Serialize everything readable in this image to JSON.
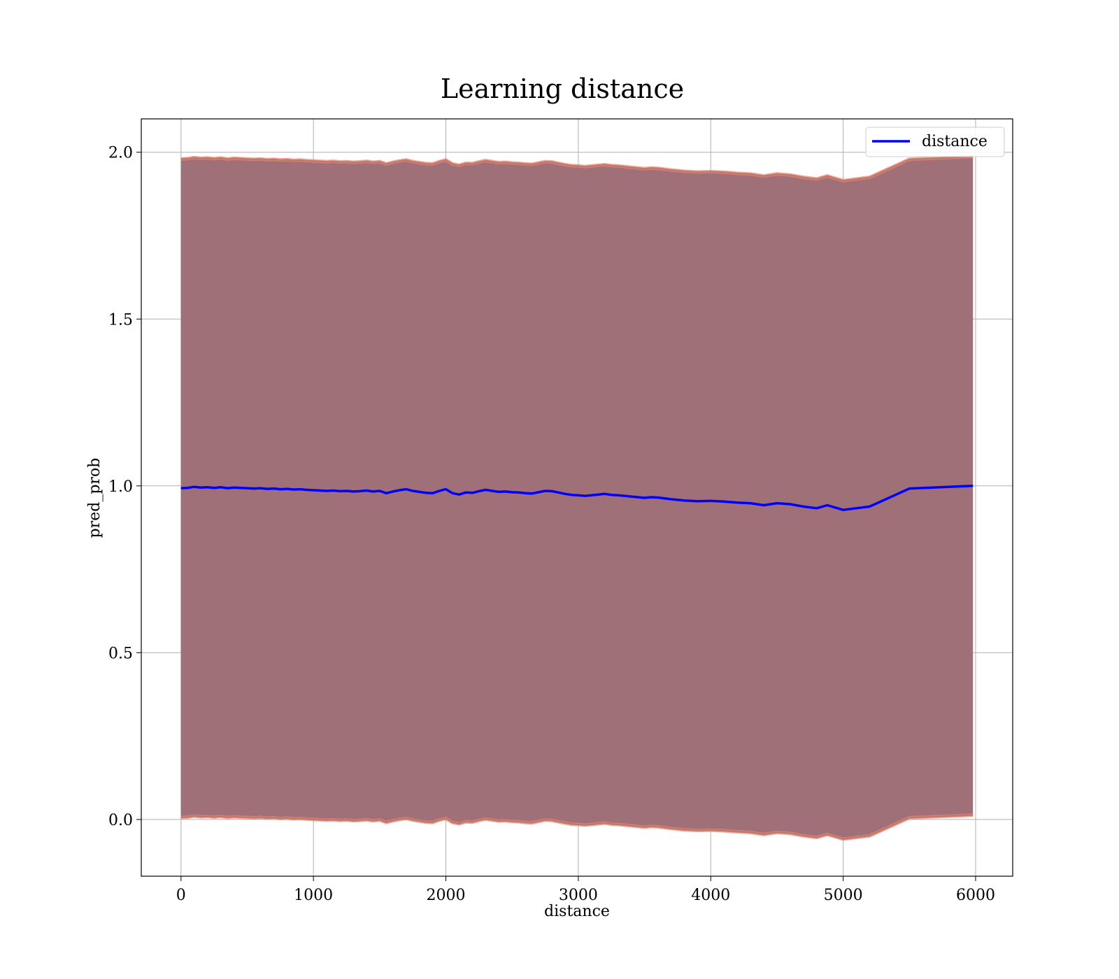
{
  "chart_data": {
    "type": "line",
    "title": "Learning distance",
    "xlabel": "distance",
    "ylabel": "pred_prob",
    "xlim": [
      -300,
      6280
    ],
    "ylim": [
      -0.17,
      2.1
    ],
    "xticks": [
      0,
      1000,
      2000,
      3000,
      4000,
      5000,
      6000
    ],
    "yticks": [
      0.0,
      0.5,
      1.0,
      1.5,
      2.0
    ],
    "xtick_labels": [
      "0",
      "1000",
      "2000",
      "3000",
      "4000",
      "5000",
      "6000"
    ],
    "ytick_labels": [
      "0.0",
      "0.5",
      "1.0",
      "1.5",
      "2.0"
    ],
    "grid": true,
    "legend": {
      "placement": "top-right",
      "entries": [
        "distance"
      ]
    },
    "colors": {
      "line": "#0000ff",
      "band_fill": "#a07078",
      "band_edge": "#f08080",
      "band_edge_inner": "#b07850"
    },
    "series": [
      {
        "name": "distance",
        "x": [
          0,
          50,
          100,
          150,
          200,
          250,
          300,
          350,
          400,
          450,
          500,
          550,
          600,
          650,
          700,
          750,
          800,
          850,
          900,
          950,
          1000,
          1050,
          1100,
          1150,
          1200,
          1250,
          1300,
          1350,
          1400,
          1450,
          1500,
          1550,
          1600,
          1650,
          1700,
          1750,
          1800,
          1850,
          1900,
          1950,
          2000,
          2050,
          2100,
          2150,
          2200,
          2250,
          2300,
          2350,
          2400,
          2450,
          2500,
          2550,
          2600,
          2650,
          2700,
          2750,
          2800,
          2850,
          2900,
          2950,
          3000,
          3050,
          3100,
          3150,
          3200,
          3250,
          3300,
          3350,
          3400,
          3450,
          3500,
          3550,
          3600,
          3700,
          3800,
          3900,
          4000,
          4100,
          4200,
          4300,
          4400,
          4500,
          4600,
          4700,
          4800,
          4880,
          5000,
          5200,
          5500,
          5980
        ],
        "y": [
          0.993,
          0.994,
          0.997,
          0.995,
          0.996,
          0.994,
          0.996,
          0.993,
          0.995,
          0.994,
          0.993,
          0.992,
          0.993,
          0.991,
          0.992,
          0.99,
          0.991,
          0.989,
          0.99,
          0.988,
          0.987,
          0.986,
          0.985,
          0.986,
          0.984,
          0.985,
          0.983,
          0.984,
          0.986,
          0.983,
          0.985,
          0.978,
          0.983,
          0.987,
          0.99,
          0.985,
          0.982,
          0.979,
          0.978,
          0.985,
          0.99,
          0.978,
          0.974,
          0.98,
          0.979,
          0.984,
          0.988,
          0.985,
          0.982,
          0.983,
          0.981,
          0.98,
          0.978,
          0.977,
          0.981,
          0.985,
          0.984,
          0.98,
          0.976,
          0.973,
          0.972,
          0.97,
          0.972,
          0.974,
          0.976,
          0.973,
          0.972,
          0.97,
          0.968,
          0.966,
          0.964,
          0.966,
          0.965,
          0.96,
          0.956,
          0.954,
          0.955,
          0.953,
          0.95,
          0.948,
          0.942,
          0.948,
          0.945,
          0.938,
          0.933,
          0.942,
          0.928,
          0.938,
          0.992,
          1.0
        ],
        "lower": [
          0.006,
          0.007,
          0.01,
          0.008,
          0.009,
          0.007,
          0.009,
          0.006,
          0.008,
          0.007,
          0.006,
          0.005,
          0.006,
          0.004,
          0.005,
          0.003,
          0.004,
          0.002,
          0.003,
          0.001,
          0.0,
          -0.001,
          -0.002,
          -0.001,
          -0.003,
          -0.002,
          -0.004,
          -0.003,
          -0.001,
          -0.004,
          -0.002,
          -0.009,
          -0.004,
          0.0,
          0.003,
          -0.002,
          -0.005,
          -0.008,
          -0.009,
          -0.002,
          0.003,
          -0.009,
          -0.013,
          -0.007,
          -0.008,
          -0.003,
          0.001,
          -0.002,
          -0.005,
          -0.004,
          -0.006,
          -0.007,
          -0.009,
          -0.01,
          -0.006,
          -0.002,
          -0.003,
          -0.007,
          -0.011,
          -0.014,
          -0.015,
          -0.017,
          -0.015,
          -0.013,
          -0.011,
          -0.014,
          -0.015,
          -0.017,
          -0.019,
          -0.021,
          -0.023,
          -0.021,
          -0.022,
          -0.027,
          -0.031,
          -0.033,
          -0.032,
          -0.034,
          -0.037,
          -0.039,
          -0.045,
          -0.039,
          -0.042,
          -0.049,
          -0.054,
          -0.045,
          -0.059,
          -0.049,
          0.005,
          0.013
        ],
        "upper": [
          1.98,
          1.981,
          1.984,
          1.982,
          1.983,
          1.981,
          1.983,
          1.98,
          1.982,
          1.981,
          1.98,
          1.979,
          1.98,
          1.978,
          1.979,
          1.977,
          1.978,
          1.976,
          1.977,
          1.975,
          1.974,
          1.973,
          1.972,
          1.973,
          1.971,
          1.972,
          1.97,
          1.971,
          1.973,
          1.97,
          1.972,
          1.965,
          1.97,
          1.974,
          1.977,
          1.972,
          1.969,
          1.966,
          1.965,
          1.972,
          1.977,
          1.965,
          1.961,
          1.967,
          1.966,
          1.971,
          1.975,
          1.972,
          1.969,
          1.97,
          1.968,
          1.967,
          1.965,
          1.964,
          1.968,
          1.972,
          1.971,
          1.967,
          1.963,
          1.96,
          1.959,
          1.957,
          1.959,
          1.961,
          1.963,
          1.96,
          1.959,
          1.957,
          1.955,
          1.953,
          1.951,
          1.953,
          1.952,
          1.947,
          1.943,
          1.941,
          1.942,
          1.94,
          1.937,
          1.935,
          1.929,
          1.935,
          1.932,
          1.925,
          1.92,
          1.929,
          1.915,
          1.925,
          1.979,
          1.987
        ]
      }
    ]
  }
}
